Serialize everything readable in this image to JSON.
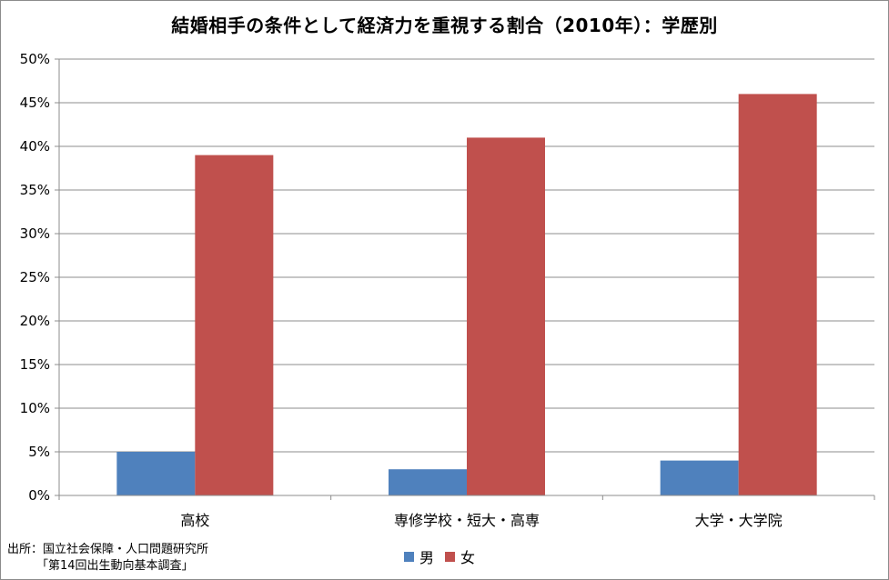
{
  "chart_data": {
    "type": "bar",
    "title": "結婚相手の条件として経済力を重視する割合（2010年）：学歴別",
    "categories": [
      "高校",
      "専修学校・短大・高専",
      "大学・大学院"
    ],
    "series": [
      {
        "name": "男",
        "values": [
          5,
          3,
          4
        ],
        "color": "#4F81BD"
      },
      {
        "name": "女",
        "values": [
          39,
          41,
          46
        ],
        "color": "#C0504D"
      }
    ],
    "ylim": [
      0,
      50
    ],
    "yticks": [
      "0%",
      "5%",
      "10%",
      "15%",
      "20%",
      "25%",
      "30%",
      "35%",
      "40%",
      "45%",
      "50%"
    ],
    "grid": true,
    "legend_position": "bottom"
  },
  "source": {
    "line1": "出所：国立社会保障・人口問題研究所",
    "line2": "「第14回出生動向基本調査」"
  }
}
